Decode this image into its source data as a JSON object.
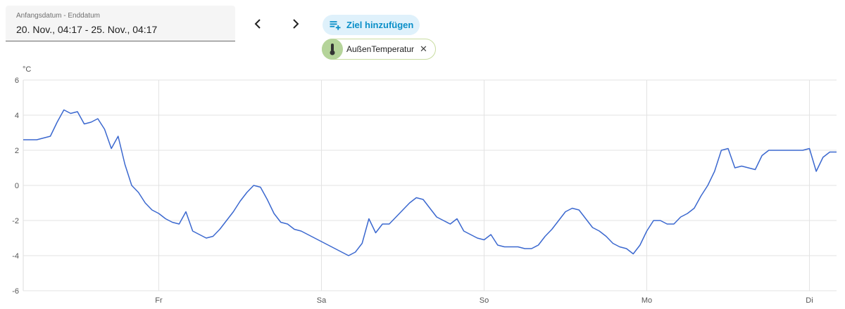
{
  "header": {
    "date_label": "Anfangsdatum - Enddatum",
    "date_value": "20. Nov., 04:17 - 25. Nov., 04:17",
    "add_button": "Ziel hinzufügen"
  },
  "chart_data": {
    "type": "line",
    "y_label": "°C",
    "categories": [
      null,
      null,
      null,
      null,
      null,
      null,
      null,
      null,
      null,
      null,
      null,
      null,
      null,
      null,
      null,
      null,
      null,
      null,
      null,
      null,
      "Fr",
      null,
      null,
      null,
      null,
      null,
      null,
      null,
      null,
      null,
      null,
      null,
      null,
      null,
      null,
      null,
      null,
      null,
      null,
      null,
      null,
      null,
      null,
      null,
      "Sa",
      null,
      null,
      null,
      null,
      null,
      null,
      null,
      null,
      null,
      null,
      null,
      null,
      null,
      null,
      null,
      null,
      null,
      null,
      null,
      null,
      null,
      null,
      null,
      "So",
      null,
      null,
      null,
      null,
      null,
      null,
      null,
      null,
      null,
      null,
      null,
      null,
      null,
      null,
      null,
      null,
      null,
      null,
      null,
      null,
      null,
      null,
      null,
      "Mo",
      null,
      null,
      null,
      null,
      null,
      null,
      null,
      null,
      null,
      null,
      null,
      null,
      null,
      null,
      null,
      null,
      null,
      null,
      null,
      null,
      null,
      null,
      null,
      "Di",
      null,
      null,
      null,
      null
    ],
    "series": [
      {
        "name": "AußenTemperatur",
        "color": "#3b68cf",
        "values": [
          2.6,
          2.6,
          2.6,
          2.7,
          2.8,
          3.6,
          4.3,
          4.1,
          4.2,
          3.5,
          3.6,
          3.8,
          3.2,
          2.1,
          2.8,
          1.2,
          0,
          -0.4,
          -1.0,
          -1.4,
          -1.6,
          -1.9,
          -2.1,
          -2.2,
          -1.5,
          -2.6,
          -2.8,
          -3.0,
          -2.9,
          -2.5,
          -2.0,
          -1.5,
          -0.9,
          -0.4,
          0,
          -0.1,
          -0.8,
          -1.6,
          -2.1,
          -2.2,
          -2.5,
          -2.6,
          -2.8,
          -3.0,
          -3.2,
          -3.4,
          -3.6,
          -3.8,
          -4.0,
          -3.8,
          -3.3,
          -1.9,
          -2.7,
          -2.2,
          -2.2,
          -1.8,
          -1.4,
          -1.0,
          -0.7,
          -0.8,
          -1.3,
          -1.8,
          -2.0,
          -2.2,
          -1.9,
          -2.6,
          -2.8,
          -3.0,
          -3.1,
          -2.8,
          -3.4,
          -3.5,
          -3.5,
          -3.5,
          -3.6,
          -3.6,
          -3.4,
          -2.9,
          -2.5,
          -2.0,
          -1.5,
          -1.3,
          -1.4,
          -1.9,
          -2.4,
          -2.6,
          -2.9,
          -3.3,
          -3.5,
          -3.6,
          -3.9,
          -3.4,
          -2.6,
          -2.0,
          -2.0,
          -2.2,
          -2.2,
          -1.8,
          -1.6,
          -1.3,
          -0.6,
          0.0,
          0.8,
          2.0,
          2.1,
          1.0,
          1.1,
          1.0,
          0.9,
          1.7,
          2.0,
          2.0,
          2.0,
          2.0,
          2.0,
          2.0,
          2.1,
          0.8,
          1.6,
          1.9,
          1.9
        ]
      }
    ],
    "ylim": [
      -6,
      6
    ],
    "yticks": [
      -6,
      -4,
      -2,
      0,
      2,
      4,
      6
    ],
    "grid": true
  }
}
